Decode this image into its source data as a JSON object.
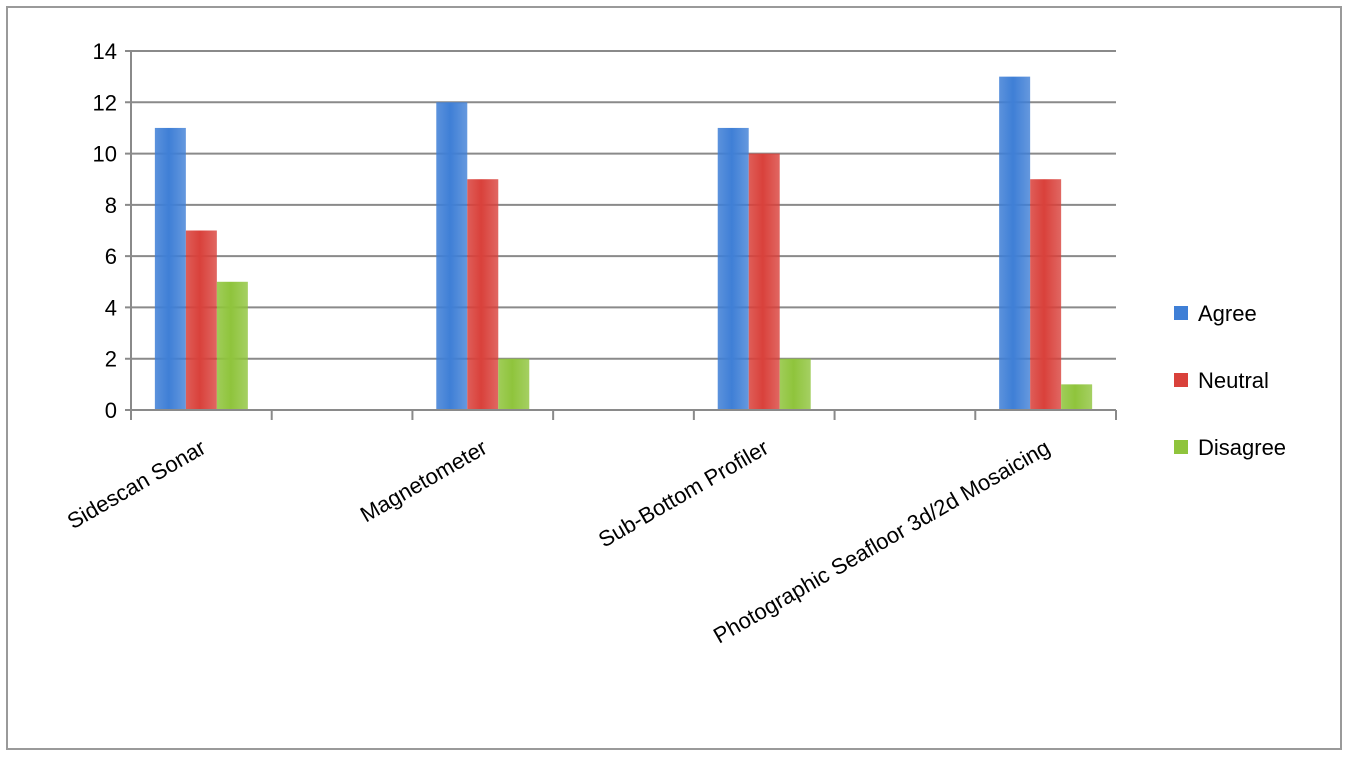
{
  "chart_data": {
    "type": "bar",
    "categories": [
      "Sidescan Sonar",
      "Magnetometer",
      "Sub-Bottom Profiler",
      "Photographic Seafloor 3d/2d Mosaicing"
    ],
    "series": [
      {
        "name": "Agree",
        "values": [
          11,
          12,
          11,
          13
        ],
        "color": "#3f7fd6"
      },
      {
        "name": "Neutral",
        "values": [
          7,
          9,
          10,
          9
        ],
        "color": "#d9413b"
      },
      {
        "name": "Disagree",
        "values": [
          5,
          2,
          2,
          1
        ],
        "color": "#8fc43c"
      }
    ],
    "title": "",
    "xlabel": "",
    "ylabel": "",
    "ylim": [
      0,
      14
    ],
    "yticks": [
      "0",
      "2",
      "4",
      "6",
      "8",
      "10",
      "12",
      "14"
    ],
    "grid": true,
    "legend_position": "right",
    "empty_slot_after_each_category": true
  }
}
